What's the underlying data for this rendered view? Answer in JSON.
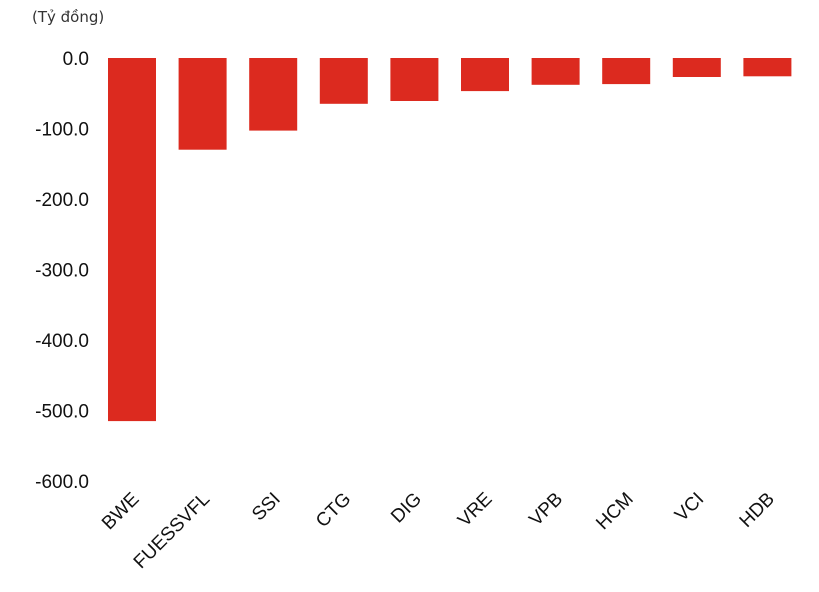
{
  "chart_data": {
    "type": "bar",
    "unit_label": "(Tỷ đồng)",
    "categories": [
      "BWE",
      "FUESSVFL",
      "SSI",
      "CTG",
      "DIG",
      "VRE",
      "VPB",
      "HCM",
      "VCI",
      "HDB"
    ],
    "values": [
      -515,
      -130,
      -103,
      -65,
      -61,
      -47,
      -38,
      -37,
      -27,
      -26
    ],
    "y_ticks": [
      "0.0",
      "-100.0",
      "-200.0",
      "-300.0",
      "-400.0",
      "-500.0",
      "-600.0"
    ],
    "ylim": [
      -600,
      0
    ],
    "grid": false,
    "bar_color": "#dc2a1f"
  }
}
